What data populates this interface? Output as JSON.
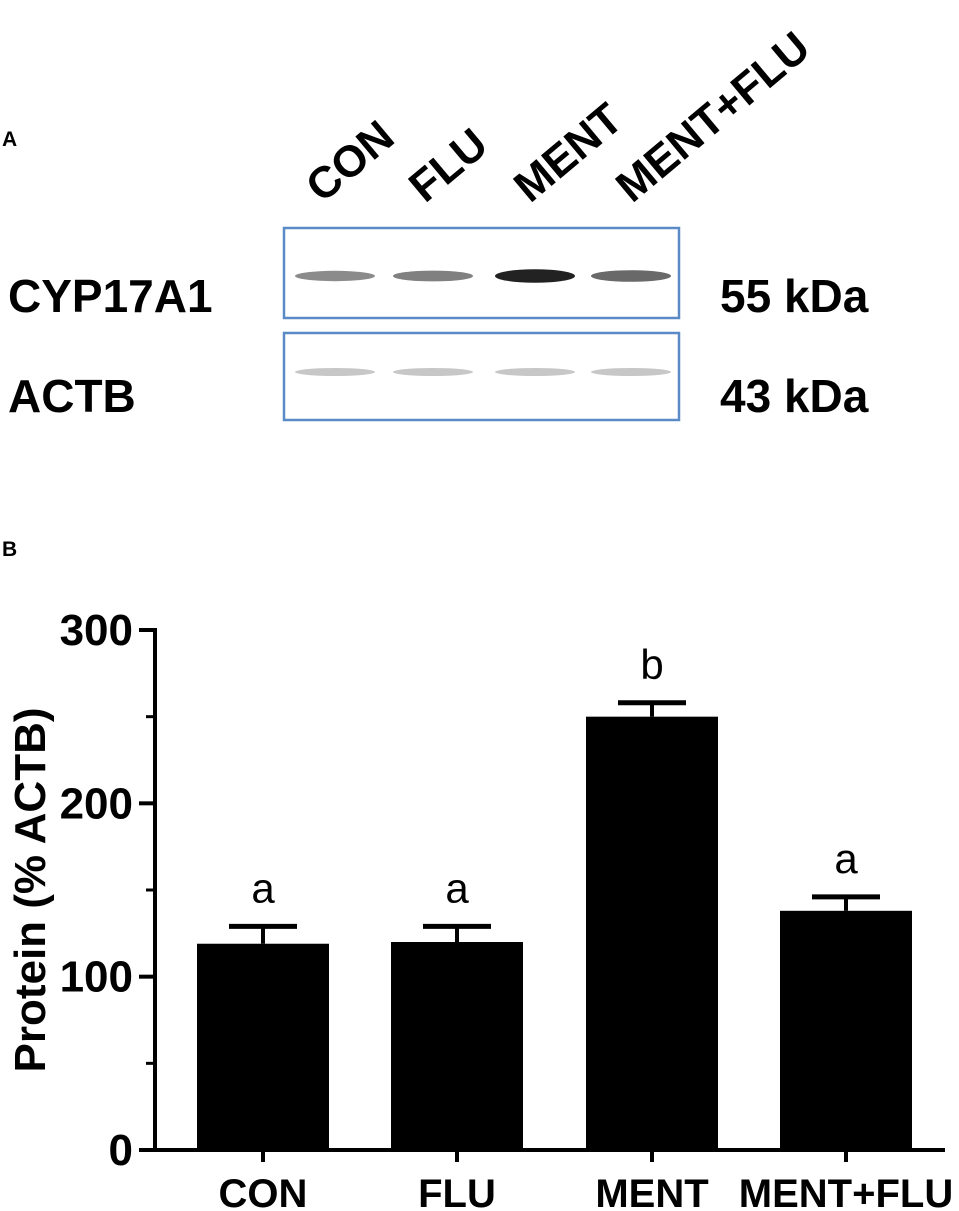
{
  "panel_a": {
    "label": "A",
    "lanes": [
      "CON",
      "FLU",
      "MENT",
      "MENT+FLU"
    ],
    "blots": [
      {
        "protein": "CYP17A1",
        "size": "55 kDa",
        "band_intensity": [
          0.55,
          0.6,
          0.95,
          0.7
        ]
      },
      {
        "protein": "ACTB",
        "size": "43 kDa",
        "band_intensity": [
          0.25,
          0.25,
          0.25,
          0.25
        ]
      }
    ]
  },
  "panel_b": {
    "label": "B"
  },
  "chart_data": {
    "type": "bar",
    "categories": [
      "CON",
      "FLU",
      "MENT",
      "MENT+FLU"
    ],
    "values": [
      119,
      120,
      250,
      138
    ],
    "error": [
      10,
      9,
      8,
      8
    ],
    "significance": [
      "a",
      "a",
      "b",
      "a"
    ],
    "ylabel": "Protein  (% ACTB)",
    "xlabel": "",
    "ylim": [
      0,
      300
    ],
    "yticks": [
      0,
      100,
      200,
      300
    ],
    "bar_color": "#000000",
    "grid": false
  }
}
